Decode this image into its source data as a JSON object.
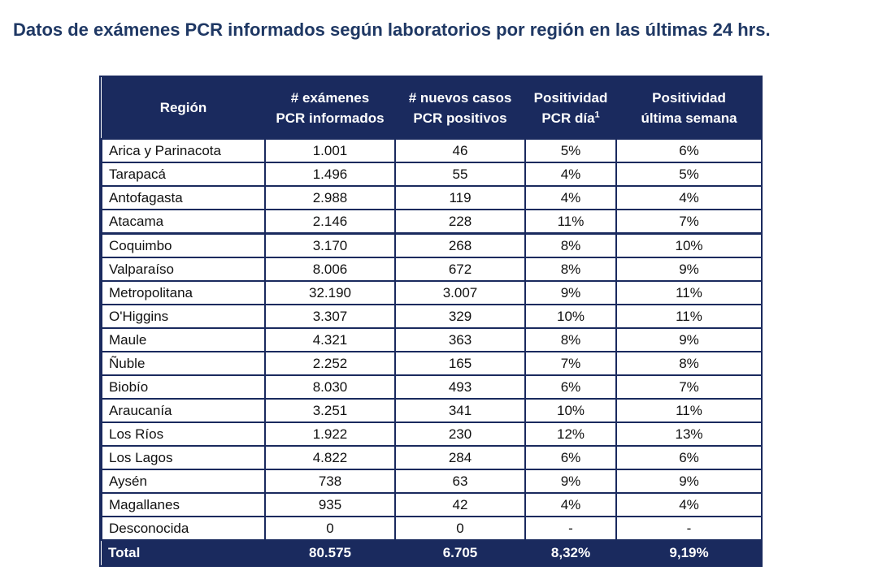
{
  "title": "Datos de exámenes PCR informados según laboratorios por región en las últimas 24 hrs.",
  "headers": {
    "region": "Región",
    "exams_line1": "# exámenes",
    "exams_line2": "PCR informados",
    "cases_line1": "# nuevos casos",
    "cases_line2": "PCR positivos",
    "pos_day_line1": "Positividad",
    "pos_day_line2": "PCR día",
    "pos_day_sup": "1",
    "pos_week_line1": "Positividad",
    "pos_week_line2": "última semana"
  },
  "rows": [
    {
      "region": "Arica y Parinacota",
      "exams": "1.001",
      "cases": "46",
      "pos_day": "5%",
      "pos_week": "6%"
    },
    {
      "region": "Tarapacá",
      "exams": "1.496",
      "cases": "55",
      "pos_day": "4%",
      "pos_week": "5%"
    },
    {
      "region": "Antofagasta",
      "exams": "2.988",
      "cases": "119",
      "pos_day": "4%",
      "pos_week": "4%"
    },
    {
      "region": "Atacama",
      "exams": "2.146",
      "cases": "228",
      "pos_day": "11%",
      "pos_week": "7%"
    },
    {
      "region": "Coquimbo",
      "exams": "3.170",
      "cases": "268",
      "pos_day": "8%",
      "pos_week": "10%"
    },
    {
      "region": "Valparaíso",
      "exams": "8.006",
      "cases": "672",
      "pos_day": "8%",
      "pos_week": "9%"
    },
    {
      "region": "Metropolitana",
      "exams": "32.190",
      "cases": "3.007",
      "pos_day": "9%",
      "pos_week": "11%"
    },
    {
      "region": "O'Higgins",
      "exams": "3.307",
      "cases": "329",
      "pos_day": "10%",
      "pos_week": "11%"
    },
    {
      "region": "Maule",
      "exams": "4.321",
      "cases": "363",
      "pos_day": "8%",
      "pos_week": "9%"
    },
    {
      "region": "Ñuble",
      "exams": "2.252",
      "cases": "165",
      "pos_day": "7%",
      "pos_week": "8%"
    },
    {
      "region": "Biobío",
      "exams": "8.030",
      "cases": "493",
      "pos_day": "6%",
      "pos_week": "7%"
    },
    {
      "region": "Araucanía",
      "exams": "3.251",
      "cases": "341",
      "pos_day": "10%",
      "pos_week": "11%"
    },
    {
      "region": "Los Ríos",
      "exams": "1.922",
      "cases": "230",
      "pos_day": "12%",
      "pos_week": "13%"
    },
    {
      "region": "Los Lagos",
      "exams": "4.822",
      "cases": "284",
      "pos_day": "6%",
      "pos_week": "6%"
    },
    {
      "region": "Aysén",
      "exams": "738",
      "cases": "63",
      "pos_day": "9%",
      "pos_week": "9%"
    },
    {
      "region": "Magallanes",
      "exams": "935",
      "cases": "42",
      "pos_day": "4%",
      "pos_week": "4%"
    },
    {
      "region": "Desconocida",
      "exams": "0",
      "cases": "0",
      "pos_day": "-",
      "pos_week": "-"
    }
  ],
  "total": {
    "region": "Total",
    "exams": "80.575",
    "cases": "6.705",
    "pos_day": "8,32%",
    "pos_week": "9,19%"
  },
  "colors": {
    "header_bg": "#1a2a5e",
    "title": "#1f3864"
  }
}
